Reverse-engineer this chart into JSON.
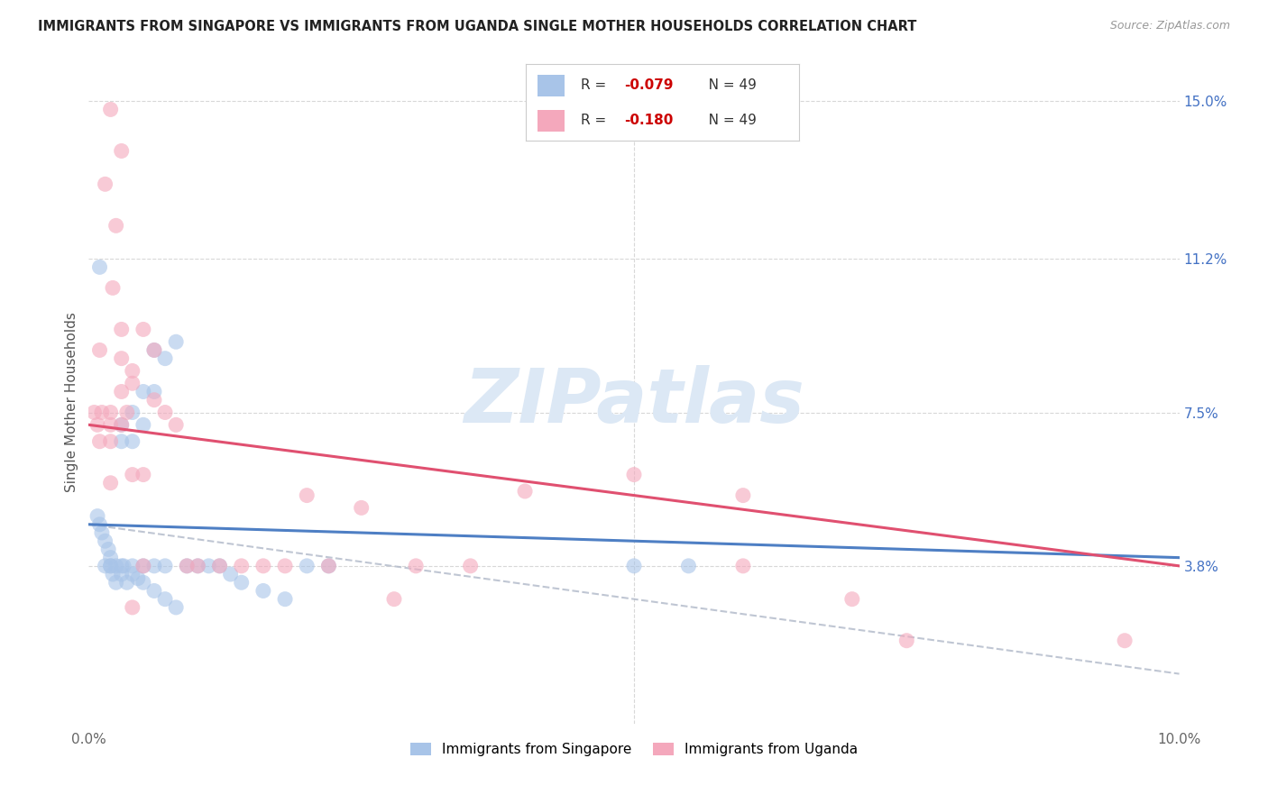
{
  "title": "IMMIGRANTS FROM SINGAPORE VS IMMIGRANTS FROM UGANDA SINGLE MOTHER HOUSEHOLDS CORRELATION CHART",
  "source": "Source: ZipAtlas.com",
  "ylabel": "Single Mother Households",
  "xlim": [
    0.0,
    0.1
  ],
  "ylim": [
    0.0,
    0.155
  ],
  "right_ytick_values": [
    0.038,
    0.075,
    0.112,
    0.15
  ],
  "right_ytick_labels": [
    "3.8%",
    "7.5%",
    "11.2%",
    "15.0%"
  ],
  "xtick_values": [
    0.0,
    0.02,
    0.04,
    0.06,
    0.08,
    0.1
  ],
  "xtick_labels": [
    "0.0%",
    "",
    "",
    "",
    "",
    "10.0%"
  ],
  "legend_r_singapore": "-0.079",
  "legend_n_singapore": "49",
  "legend_r_uganda": "-0.180",
  "legend_n_uganda": "49",
  "singapore_color": "#a8c4e8",
  "uganda_color": "#f4a8bc",
  "singapore_line_color": "#4e7fc4",
  "uganda_line_color": "#e05070",
  "dashed_line_color": "#b0b8c8",
  "watermark_text": "ZIPatlas",
  "watermark_color": "#dce8f5",
  "background_color": "#ffffff",
  "grid_color": "#d8d8d8",
  "singapore_trend_y0": 0.048,
  "singapore_trend_y1": 0.04,
  "uganda_trend_y0": 0.072,
  "uganda_trend_y1": 0.038,
  "dashed_trend_y0": 0.048,
  "dashed_trend_y1": 0.012,
  "singapore_x": [
    0.0008,
    0.001,
    0.0012,
    0.0015,
    0.0018,
    0.002,
    0.002,
    0.0022,
    0.0025,
    0.003,
    0.003,
    0.0032,
    0.0035,
    0.004,
    0.004,
    0.004,
    0.0045,
    0.005,
    0.005,
    0.005,
    0.006,
    0.006,
    0.006,
    0.007,
    0.007,
    0.008,
    0.009,
    0.01,
    0.011,
    0.012,
    0.013,
    0.014,
    0.016,
    0.018,
    0.02,
    0.022,
    0.001,
    0.0015,
    0.002,
    0.0025,
    0.003,
    0.003,
    0.004,
    0.005,
    0.006,
    0.007,
    0.008,
    0.05,
    0.055
  ],
  "singapore_y": [
    0.05,
    0.048,
    0.046,
    0.044,
    0.042,
    0.04,
    0.038,
    0.036,
    0.034,
    0.072,
    0.068,
    0.038,
    0.034,
    0.075,
    0.068,
    0.038,
    0.035,
    0.08,
    0.072,
    0.038,
    0.09,
    0.08,
    0.038,
    0.088,
    0.038,
    0.092,
    0.038,
    0.038,
    0.038,
    0.038,
    0.036,
    0.034,
    0.032,
    0.03,
    0.038,
    0.038,
    0.11,
    0.038,
    0.038,
    0.038,
    0.038,
    0.036,
    0.036,
    0.034,
    0.032,
    0.03,
    0.028,
    0.038,
    0.038
  ],
  "uganda_x": [
    0.0005,
    0.0008,
    0.001,
    0.001,
    0.0012,
    0.0015,
    0.002,
    0.002,
    0.002,
    0.0022,
    0.0025,
    0.003,
    0.003,
    0.003,
    0.0035,
    0.004,
    0.004,
    0.005,
    0.005,
    0.006,
    0.006,
    0.007,
    0.008,
    0.009,
    0.01,
    0.012,
    0.014,
    0.016,
    0.018,
    0.02,
    0.022,
    0.025,
    0.028,
    0.03,
    0.035,
    0.04,
    0.002,
    0.003,
    0.004,
    0.005,
    0.05,
    0.06,
    0.07,
    0.06,
    0.075,
    0.002,
    0.003,
    0.004,
    0.095
  ],
  "uganda_y": [
    0.075,
    0.072,
    0.09,
    0.068,
    0.075,
    0.13,
    0.075,
    0.068,
    0.058,
    0.105,
    0.12,
    0.095,
    0.088,
    0.08,
    0.075,
    0.085,
    0.082,
    0.095,
    0.038,
    0.09,
    0.078,
    0.075,
    0.072,
    0.038,
    0.038,
    0.038,
    0.038,
    0.038,
    0.038,
    0.055,
    0.038,
    0.052,
    0.03,
    0.038,
    0.038,
    0.056,
    0.072,
    0.072,
    0.06,
    0.06,
    0.06,
    0.055,
    0.03,
    0.038,
    0.02,
    0.148,
    0.138,
    0.028,
    0.02
  ]
}
